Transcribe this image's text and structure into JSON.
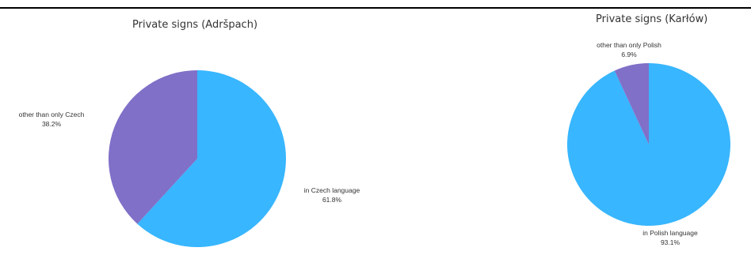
{
  "chart_data": [
    {
      "type": "pie",
      "title": "Private signs (Adršpach)",
      "slices": [
        {
          "label": "in Czech language",
          "value": 61.8,
          "value_text": "61.8%",
          "color": "#38b6ff"
        },
        {
          "label": "other than only Czech",
          "value": 38.2,
          "value_text": "38.2%",
          "color": "#8070c8"
        }
      ]
    },
    {
      "type": "pie",
      "title": "Private signs (Karłów)",
      "slices": [
        {
          "label": "in Polish language",
          "value": 93.1,
          "value_text": "93.1%",
          "color": "#38b6ff"
        },
        {
          "label": "other than only Polish",
          "value": 6.9,
          "value_text": "6.9%",
          "color": "#8070c8"
        }
      ]
    }
  ]
}
